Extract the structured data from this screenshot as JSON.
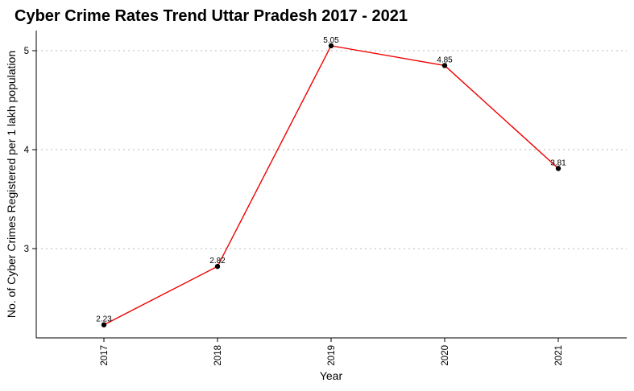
{
  "chart_data": {
    "type": "line",
    "title": "Cyber Crime Rates Trend Uttar Pradesh 2017 - 2021",
    "xlabel": "Year",
    "ylabel": "No. of Cyber Crimes Registered per 1 lakh population",
    "categories": [
      "2017",
      "2018",
      "2019",
      "2020",
      "2021"
    ],
    "values": [
      2.23,
      2.82,
      5.05,
      4.85,
      3.81
    ],
    "data_labels": [
      "2.23",
      "2.82",
      "5.05",
      "4.85",
      "3.81"
    ],
    "yticks": [
      3,
      4,
      5
    ],
    "ylim": [
      2.1,
      5.15
    ],
    "grid": "horizontal dotted",
    "line_color": "#ee0000",
    "point_color": "#000000"
  }
}
